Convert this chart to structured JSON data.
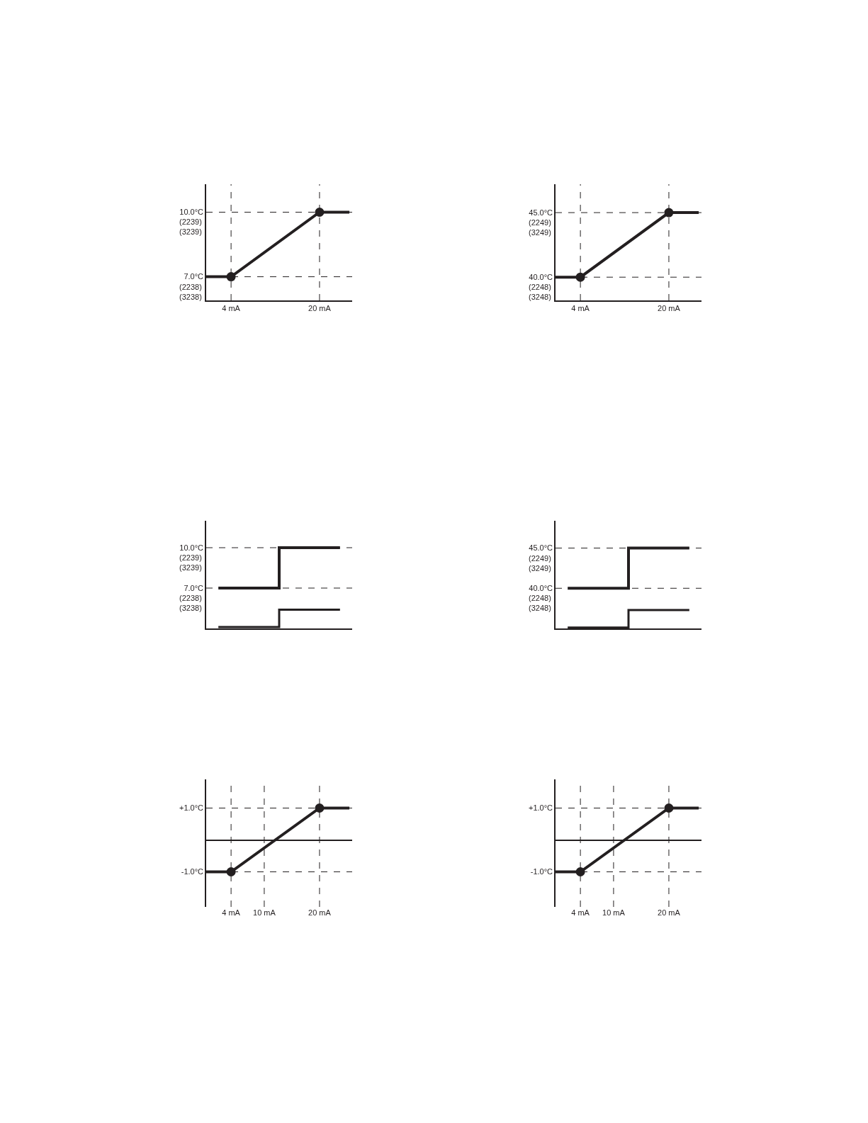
{
  "chart_data": [
    {
      "type": "line",
      "xlim": [
        -0.5,
        25.9
      ],
      "ylim": [
        5.9,
        11.3
      ],
      "marker": "none",
      "xticks": [
        {
          "value": 4,
          "label": "4 mA"
        },
        {
          "value": 20,
          "label": "20 mA"
        }
      ],
      "yticks": [
        {
          "value": 7,
          "label": "7.0°C"
        },
        {
          "value": 10,
          "label": "10.0°C"
        }
      ],
      "annotations": [
        "(2238)\n(3238)",
        "(2239)\n(3239)"
      ],
      "series": [
        {
          "color": "#231f20",
          "x": [
            -0.5,
            4,
            20,
            25.4
          ],
          "values": [
            7,
            7,
            10,
            10
          ]
        },
        {
          "type": "scatter",
          "marker": "circle",
          "color": "#231f20",
          "x": [
            4,
            20
          ],
          "values": [
            7,
            10
          ]
        }
      ],
      "ref_lines": [
        {
          "axis": "x",
          "value": 4,
          "line_style": "dashed",
          "color": "#231f20"
        },
        {
          "axis": "x",
          "value": 20,
          "line_style": "dashed",
          "color": "#231f20"
        },
        {
          "axis": "y",
          "value": 7,
          "line_style": "dashed",
          "color": "#231f20"
        },
        {
          "axis": "y",
          "value": 10,
          "line_style": "dashed",
          "color": "#231f20"
        }
      ]
    },
    {
      "type": "line",
      "xlim": [
        -0.5,
        25.9
      ],
      "ylim": [
        38.2,
        47.2
      ],
      "marker": "none",
      "xticks": [
        {
          "value": 4,
          "label": "4 mA"
        },
        {
          "value": 20,
          "label": "20 mA"
        }
      ],
      "yticks": [
        {
          "value": 40,
          "label": "40.0°C"
        },
        {
          "value": 45,
          "label": "45.0°C"
        }
      ],
      "annotations": [
        "(2248)\n(3248)",
        "(2249)\n(3249)"
      ],
      "series": [
        {
          "color": "#231f20",
          "x": [
            -0.5,
            4,
            20,
            25.4
          ],
          "values": [
            40,
            40,
            45,
            45
          ]
        },
        {
          "type": "scatter",
          "marker": "circle",
          "color": "#231f20",
          "x": [
            4,
            20
          ],
          "values": [
            40,
            45
          ]
        }
      ],
      "ref_lines": [
        {
          "axis": "x",
          "value": 4,
          "line_style": "dashed",
          "color": "#231f20"
        },
        {
          "axis": "x",
          "value": 20,
          "line_style": "dashed",
          "color": "#231f20"
        },
        {
          "axis": "y",
          "value": 40,
          "line_style": "dashed",
          "color": "#231f20"
        },
        {
          "axis": "y",
          "value": 45,
          "line_style": "dashed",
          "color": "#231f20"
        }
      ]
    },
    {
      "type": "step",
      "categories": [
        null,
        null,
        null,
        null,
        null
      ],
      "ylim": [
        4,
        12
      ],
      "yticks": [
        {
          "value": 7,
          "label": "7.0°C"
        },
        {
          "value": 10,
          "label": "10.0°C"
        }
      ],
      "annotations": [
        "(2238)\n(3238)",
        "(2239)\n(3239)"
      ],
      "series": [
        {
          "color": "#231f20",
          "values": [
            7,
            7,
            10,
            10,
            10
          ]
        },
        {
          "color": "#231f20",
          "values": [
            4.1,
            4.1,
            5.4,
            5.4,
            5.4
          ]
        }
      ],
      "ref_lines": [
        {
          "axis": "y",
          "value": 7,
          "line_style": "dashed",
          "color": "#231f20"
        },
        {
          "axis": "y",
          "value": 10,
          "line_style": "dashed",
          "color": "#231f20"
        }
      ]
    },
    {
      "type": "step",
      "categories": [
        null,
        null,
        null,
        null,
        null
      ],
      "ylim": [
        35,
        48.4
      ],
      "yticks": [
        {
          "value": 40,
          "label": "40.0°C"
        },
        {
          "value": 45,
          "label": "45.0°C"
        }
      ],
      "annotations": [
        "(2248)\n(3248)",
        "(2249)\n(3249)"
      ],
      "series": [
        {
          "color": "#231f20",
          "values": [
            40,
            40,
            45,
            45,
            45
          ]
        },
        {
          "color": "#231f20",
          "values": [
            35.1,
            35.1,
            37.3,
            37.3,
            37.3
          ]
        }
      ],
      "ref_lines": [
        {
          "axis": "y",
          "value": 40,
          "line_style": "dashed",
          "color": "#231f20"
        },
        {
          "axis": "y",
          "value": 45,
          "line_style": "dashed",
          "color": "#231f20"
        }
      ]
    },
    {
      "type": "line",
      "xlim": [
        -0.5,
        25.9
      ],
      "ylim": [
        -2.1,
        1.9
      ],
      "marker": "none",
      "xticks": [
        {
          "value": 4,
          "label": "4 mA"
        },
        {
          "value": 10,
          "label": "10 mA"
        },
        {
          "value": 20,
          "label": "20 mA"
        }
      ],
      "yticks": [
        {
          "value": -1,
          "label": "-1.0°C"
        },
        {
          "value": 1,
          "label": "+1.0°C"
        }
      ],
      "series": [
        {
          "color": "#231f20",
          "x": [
            -0.5,
            4,
            20,
            25.4
          ],
          "values": [
            -1,
            -1,
            1,
            1
          ]
        },
        {
          "type": "scatter",
          "marker": "circle",
          "color": "#231f20",
          "x": [
            4,
            20
          ],
          "values": [
            -1,
            1
          ]
        }
      ],
      "ref_lines": [
        {
          "axis": "x",
          "value": 4,
          "line_style": "dashed",
          "color": "#231f20"
        },
        {
          "axis": "x",
          "value": 10,
          "line_style": "dashed",
          "color": "#231f20"
        },
        {
          "axis": "x",
          "value": 20,
          "line_style": "dashed",
          "color": "#231f20"
        },
        {
          "axis": "y",
          "value": -1,
          "line_style": "dashed",
          "color": "#231f20"
        },
        {
          "axis": "y",
          "value": 1,
          "line_style": "dashed",
          "color": "#231f20"
        }
      ]
    },
    {
      "type": "line",
      "xlim": [
        -0.5,
        25.9
      ],
      "ylim": [
        -2.1,
        1.9
      ],
      "marker": "none",
      "xticks": [
        {
          "value": 4,
          "label": "4 mA"
        },
        {
          "value": 10,
          "label": "10 mA"
        },
        {
          "value": 20,
          "label": "20 mA"
        }
      ],
      "yticks": [
        {
          "value": -1,
          "label": "-1.0°C"
        },
        {
          "value": 1,
          "label": "+1.0°C"
        }
      ],
      "series": [
        {
          "color": "#231f20",
          "x": [
            -0.5,
            4,
            20,
            25.4
          ],
          "values": [
            -1,
            -1,
            1,
            1
          ]
        },
        {
          "type": "scatter",
          "marker": "circle",
          "color": "#231f20",
          "x": [
            4,
            20
          ],
          "values": [
            -1,
            1
          ]
        }
      ],
      "ref_lines": [
        {
          "axis": "x",
          "value": 4,
          "line_style": "dashed",
          "color": "#231f20"
        },
        {
          "axis": "x",
          "value": 10,
          "line_style": "dashed",
          "color": "#231f20"
        },
        {
          "axis": "x",
          "value": 20,
          "line_style": "dashed",
          "color": "#231f20"
        },
        {
          "axis": "y",
          "value": -1,
          "line_style": "dashed",
          "color": "#231f20"
        },
        {
          "axis": "y",
          "value": 1,
          "line_style": "dashed",
          "color": "#231f20"
        }
      ]
    }
  ]
}
